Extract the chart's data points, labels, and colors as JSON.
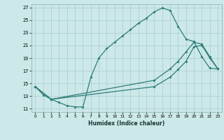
{
  "xlabel": "Humidex (Indice chaleur)",
  "bg_color": "#cce8e8",
  "line_color": "#2d7d78",
  "grid_color": "#aacccc",
  "xlim": [
    -0.5,
    23.5
  ],
  "ylim": [
    10.5,
    27.5
  ],
  "xticks": [
    0,
    1,
    2,
    3,
    4,
    5,
    6,
    7,
    8,
    9,
    10,
    11,
    12,
    13,
    14,
    15,
    16,
    17,
    18,
    19,
    20,
    21,
    22,
    23
  ],
  "yticks": [
    11,
    13,
    15,
    17,
    19,
    21,
    23,
    25,
    27
  ],
  "line1_x": [
    0,
    1,
    2,
    3,
    4,
    5,
    6,
    7,
    8,
    9,
    10,
    11,
    12,
    13,
    14,
    15,
    16,
    17,
    18,
    19,
    20,
    21,
    22,
    23
  ],
  "line1_y": [
    14.5,
    13.2,
    12.5,
    12.0,
    11.5,
    11.3,
    11.3,
    16.0,
    19.0,
    20.5,
    21.5,
    22.5,
    23.5,
    24.5,
    25.3,
    26.3,
    26.9,
    26.5,
    24.0,
    22.0,
    21.6,
    19.2,
    17.4,
    17.3
  ],
  "line2_x": [
    0,
    2,
    15,
    17,
    18,
    19,
    20,
    21,
    22,
    23
  ],
  "line2_y": [
    14.5,
    12.5,
    15.5,
    17.3,
    18.5,
    20.0,
    21.5,
    21.2,
    19.2,
    17.3
  ],
  "line3_x": [
    0,
    2,
    15,
    17,
    18,
    19,
    20,
    21,
    22,
    23
  ],
  "line3_y": [
    14.5,
    12.5,
    14.5,
    16.0,
    17.2,
    18.5,
    20.8,
    21.0,
    19.0,
    17.3
  ]
}
